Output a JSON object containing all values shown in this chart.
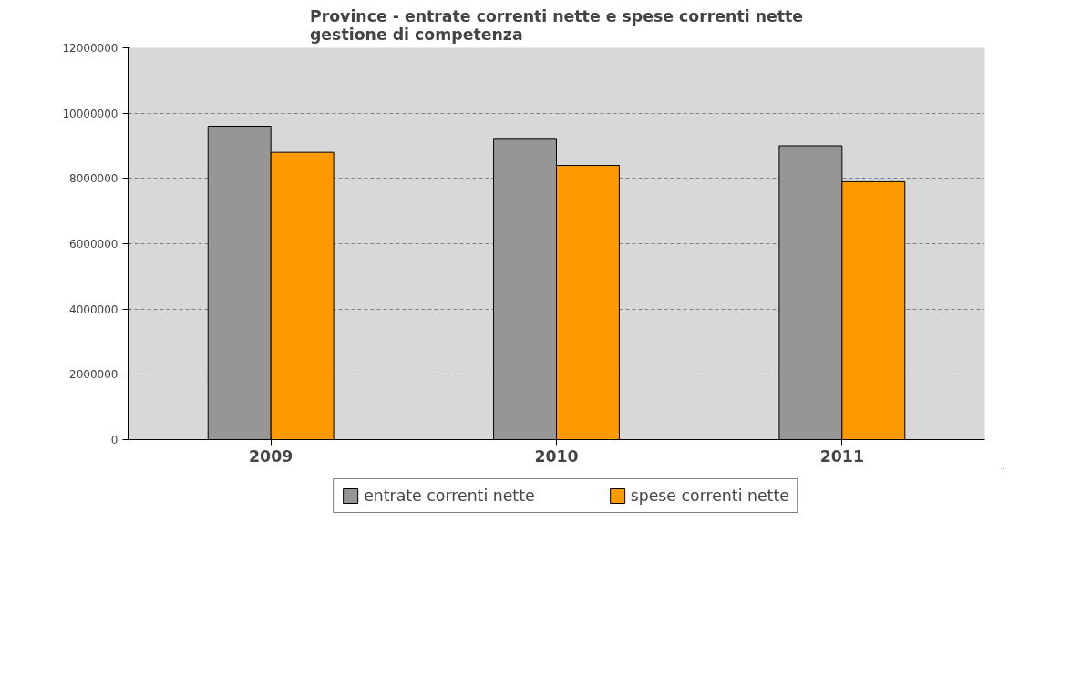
{
  "chart_data": {
    "type": "bar",
    "title": "Province - entrate correnti nette e spese correnti nette\ngestione di competenza",
    "categories": [
      "2009",
      "2010",
      "2011"
    ],
    "series": [
      {
        "name": "entrate correnti nette",
        "color": "#969696",
        "values": [
          9600000,
          9200000,
          9000000
        ]
      },
      {
        "name": "spese correnti nette",
        "color": "#ff9900",
        "values": [
          8800000,
          8400000,
          7900000
        ]
      }
    ],
    "ylim": [
      0,
      12000000
    ],
    "yticks": [
      0,
      2000000,
      4000000,
      6000000,
      8000000,
      10000000,
      12000000
    ],
    "grid": "y",
    "legend": "bottom"
  }
}
